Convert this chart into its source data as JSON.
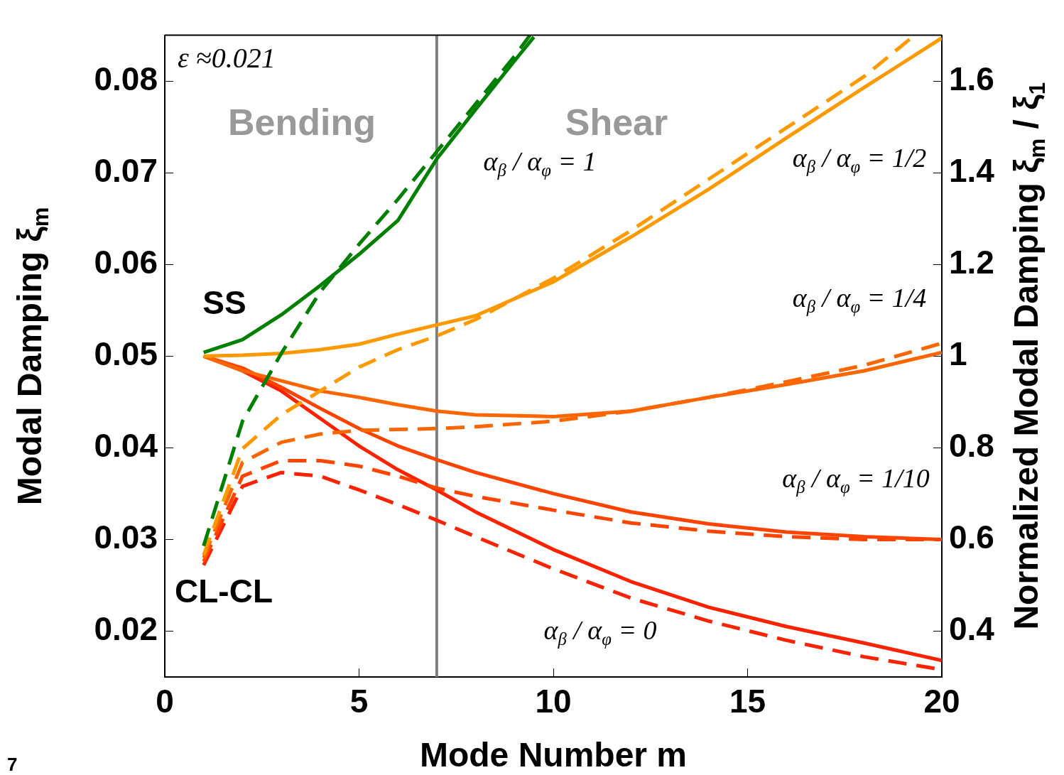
{
  "chart_data": {
    "type": "line",
    "xlabel": "Mode Number m",
    "ylabel": "Modal Damping ξ$_{m}$",
    "y2label": "Normalized Modal Damping ξ$_{m}$ / ξ$_{1}$",
    "x": [
      1,
      2,
      3,
      4,
      5,
      6,
      7,
      8,
      10,
      12,
      14,
      16,
      18,
      20
    ],
    "xlim": [
      0,
      20
    ],
    "xticks": [
      0,
      5,
      10,
      15,
      20
    ],
    "ylim": [
      0.015,
      0.085
    ],
    "yticks": [
      0.02,
      0.03,
      0.04,
      0.05,
      0.06,
      0.07,
      0.08
    ],
    "y2lim": [
      0.3,
      1.7
    ],
    "y2ticks": [
      0.4,
      0.6,
      0.8,
      1,
      1.2,
      1.4,
      1.6
    ],
    "grid": false,
    "legend": false,
    "marker": "none",
    "series": [
      {
        "color": "#008000",
        "line_style": "solid",
        "x": [
          1,
          2,
          3,
          4,
          5,
          6,
          7,
          8,
          9,
          9.5
        ],
        "values": [
          0.0504,
          0.0518,
          0.0545,
          0.0577,
          0.0611,
          0.0648,
          0.0715,
          0.0769,
          0.0822,
          0.0848
        ]
      },
      {
        "color": "#008000",
        "line_style": "dashed",
        "x": [
          1,
          2,
          3,
          4,
          5,
          6,
          7,
          8,
          9,
          9.4
        ],
        "values": [
          0.0293,
          0.0429,
          0.0503,
          0.057,
          0.0622,
          0.0671,
          0.0723,
          0.0775,
          0.0827,
          0.085
        ]
      },
      {
        "color": "#ff9900",
        "line_style": "solid",
        "values": [
          0.05,
          0.0501,
          0.0503,
          0.0507,
          0.0513,
          0.0524,
          0.0534,
          0.0544,
          0.0581,
          0.063,
          0.0682,
          0.0738,
          0.0793,
          0.0847
        ]
      },
      {
        "color": "#ff9900",
        "line_style": "dashed",
        "x": [
          1,
          2,
          3,
          4,
          5,
          6,
          7,
          8,
          10,
          12,
          14,
          16,
          18,
          19.3
        ],
        "values": [
          0.0283,
          0.0399,
          0.0436,
          0.0462,
          0.0488,
          0.0507,
          0.0522,
          0.054,
          0.0585,
          0.0637,
          0.0693,
          0.0749,
          0.0805,
          0.085
        ]
      },
      {
        "color": "#ff6600",
        "line_style": "solid",
        "values": [
          0.05,
          0.0484,
          0.0473,
          0.0462,
          0.0455,
          0.0447,
          0.044,
          0.0436,
          0.0434,
          0.044,
          0.0455,
          0.0469,
          0.0484,
          0.0504
        ]
      },
      {
        "color": "#ff6600",
        "line_style": "dashed",
        "values": [
          0.028,
          0.0384,
          0.0406,
          0.0415,
          0.0419,
          0.042,
          0.0421,
          0.0423,
          0.0429,
          0.044,
          0.0455,
          0.0472,
          0.049,
          0.0514
        ]
      },
      {
        "color": "#ff4400",
        "line_style": "solid",
        "values": [
          0.05,
          0.0487,
          0.0466,
          0.0443,
          0.0421,
          0.0402,
          0.0387,
          0.0373,
          0.035,
          0.033,
          0.0317,
          0.0308,
          0.0303,
          0.03
        ]
      },
      {
        "color": "#ff4400",
        "line_style": "dashed",
        "values": [
          0.0276,
          0.0369,
          0.0386,
          0.0386,
          0.038,
          0.0369,
          0.0356,
          0.0347,
          0.0332,
          0.0318,
          0.0309,
          0.0303,
          0.03,
          0.03
        ]
      },
      {
        "color": "#ff2200",
        "line_style": "solid",
        "values": [
          0.05,
          0.0484,
          0.0462,
          0.0432,
          0.0402,
          0.0376,
          0.0354,
          0.033,
          0.0289,
          0.0254,
          0.0226,
          0.0205,
          0.0187,
          0.0168
        ]
      },
      {
        "color": "#ff2200",
        "line_style": "dashed",
        "values": [
          0.0272,
          0.0358,
          0.0373,
          0.0369,
          0.0354,
          0.0338,
          0.0321,
          0.0303,
          0.0268,
          0.0236,
          0.0211,
          0.019,
          0.0172,
          0.0158
        ]
      }
    ],
    "ref_lines": [
      {
        "axis": "x",
        "value": 7,
        "color": "#808080",
        "line_style": "solid"
      }
    ],
    "annotations": [
      "ε ≈0.021",
      "Bending",
      "Shear",
      "SS",
      "CL-CL",
      "α$_{β}$ / α$_{φ}$ = 1",
      "α$_{β}$ / α$_{φ}$ = 1/2",
      "α$_{β}$ / α$_{φ}$ = 1/4",
      "α$_{β}$ / α$_{φ}$ = 1/10",
      "α$_{β}$ / α$_{φ}$ = 0",
      "7"
    ]
  }
}
